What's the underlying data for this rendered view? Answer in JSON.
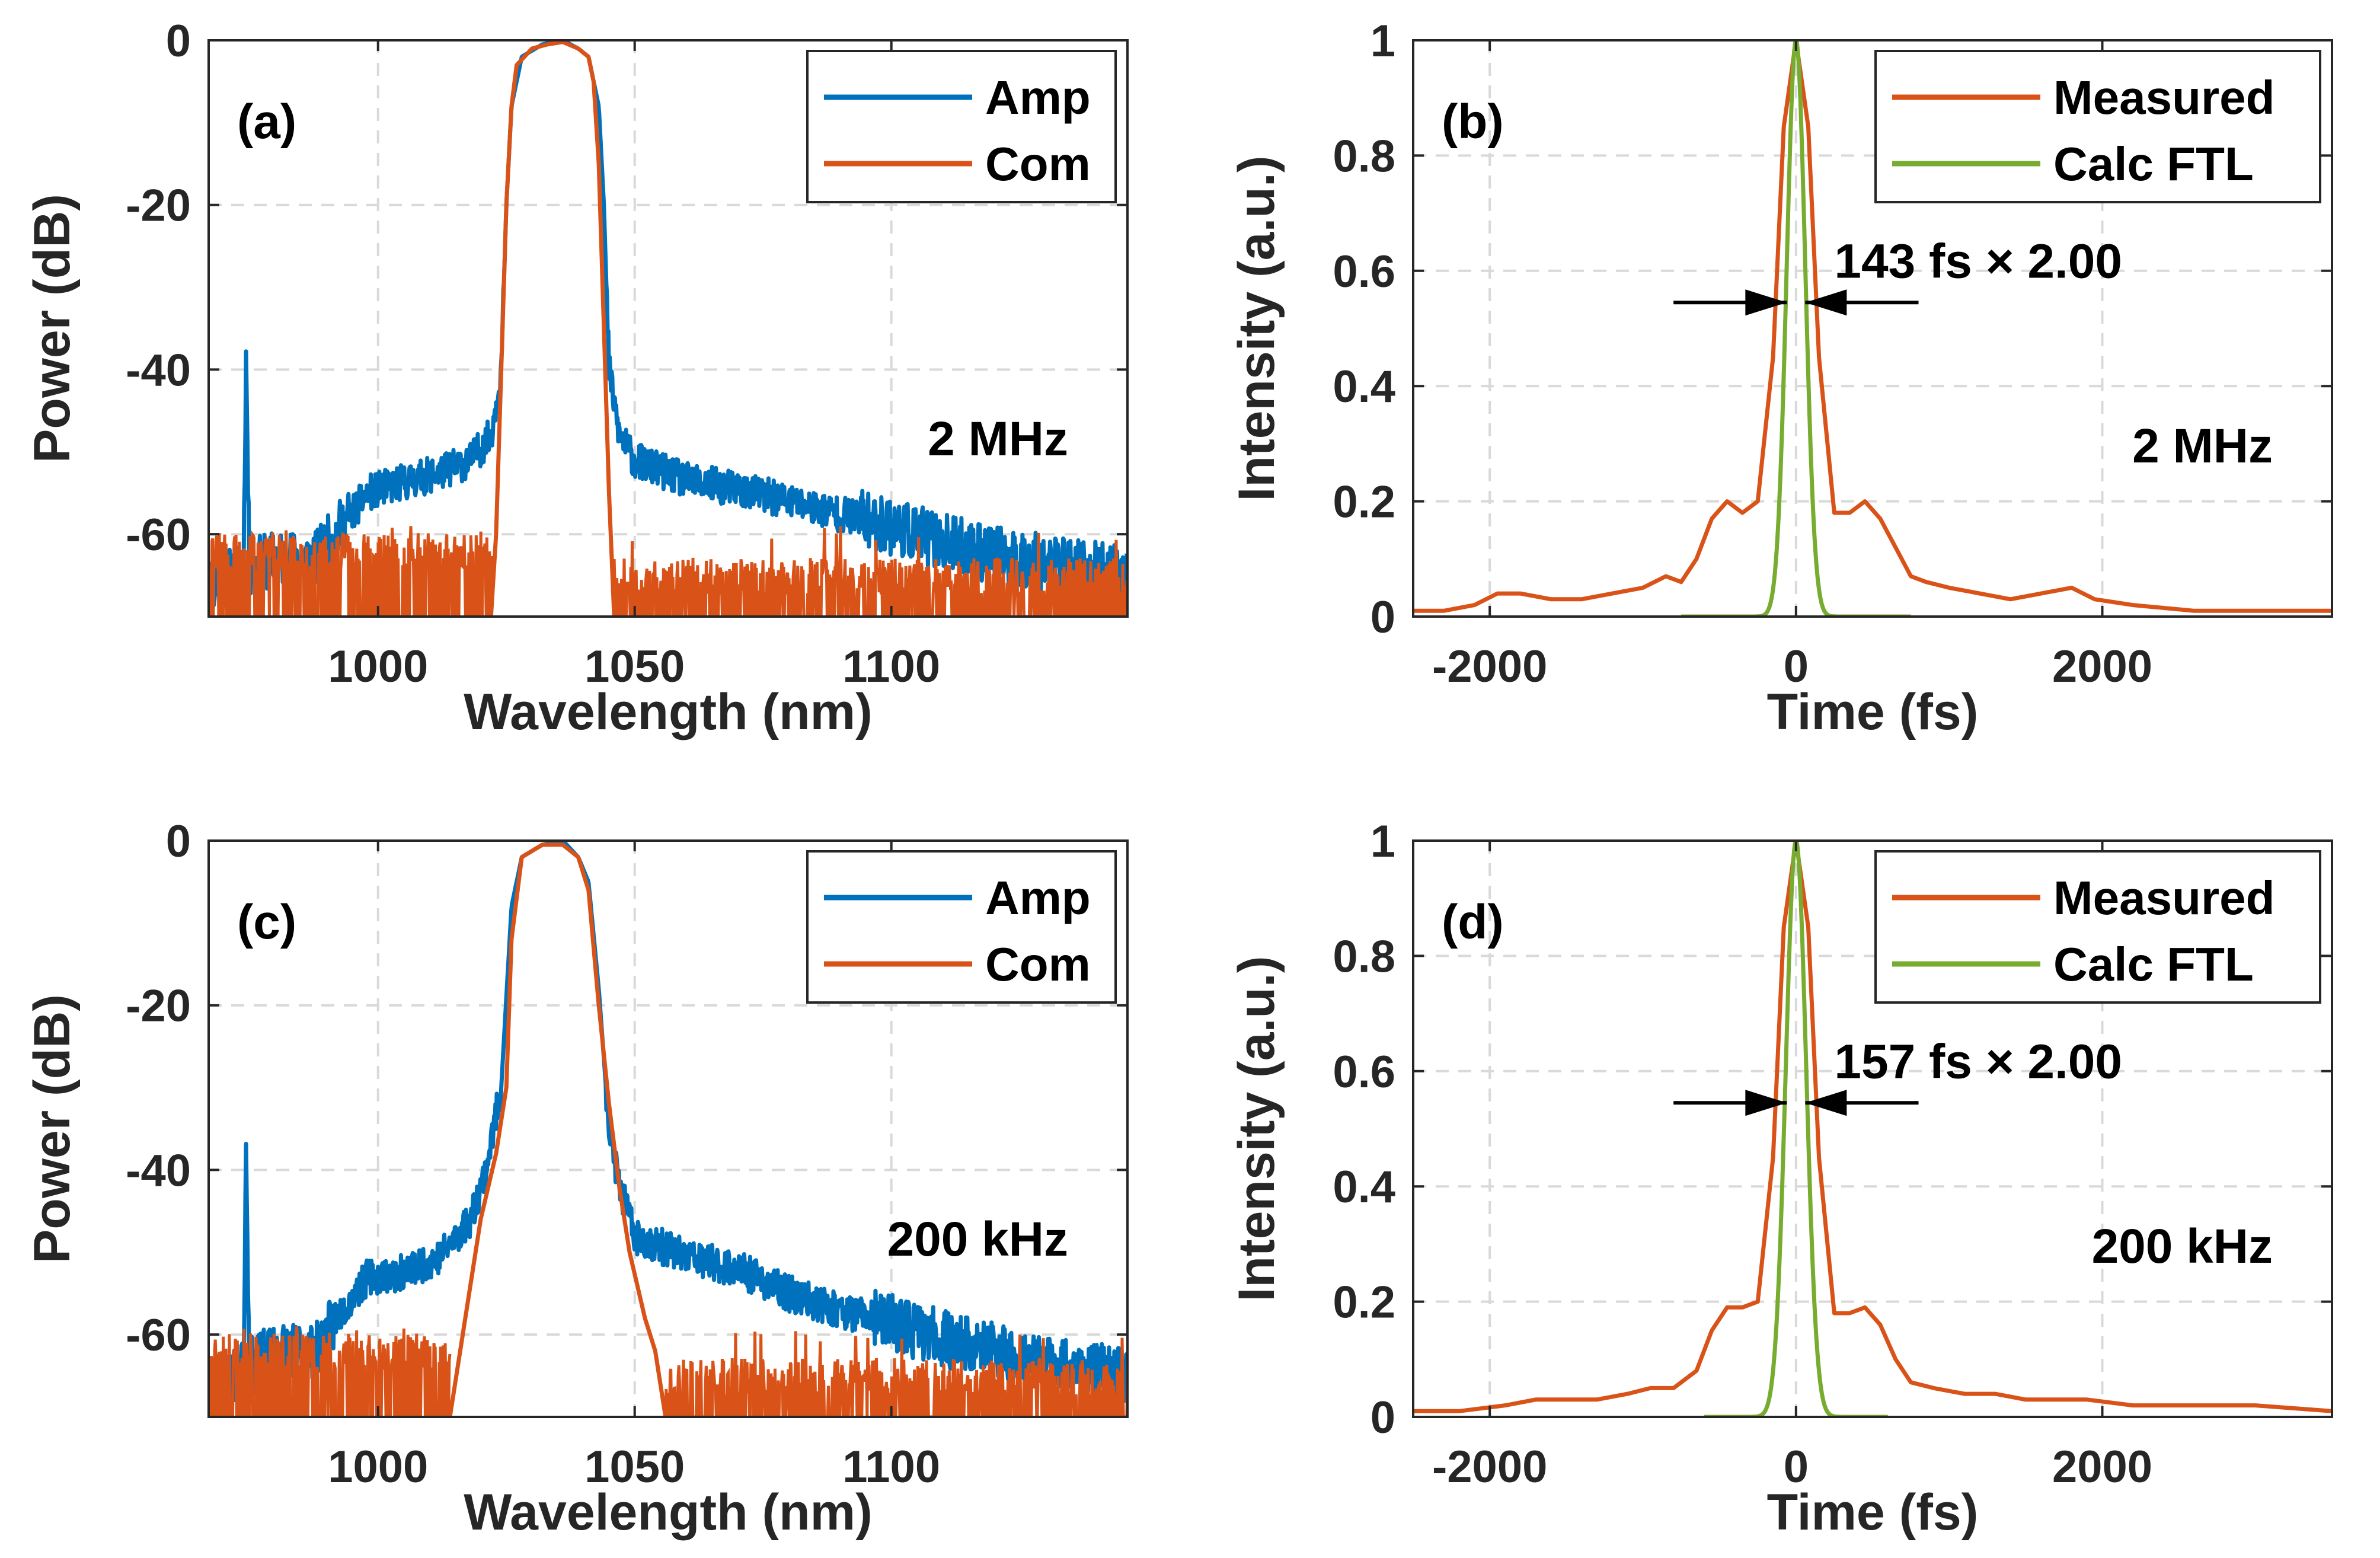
{
  "colors": {
    "blue": "#0072BD",
    "orange": "#D95319",
    "green": "#77AC30",
    "axis": "#262626",
    "grid": "#d9d9d9"
  },
  "chart_data": [
    {
      "id": "a",
      "type": "line",
      "panel_label": "(a)",
      "annotation": "2 MHz",
      "xlabel": "Wavelength (nm)",
      "ylabel": "Power (dB)",
      "xlim": [
        967,
        1146
      ],
      "ylim": [
        -70,
        0
      ],
      "xticks": [
        1000,
        1050,
        1100
      ],
      "xtick_labels": [
        "1000",
        "1050",
        "1100"
      ],
      "yticks": [
        0,
        -20,
        -40,
        -60
      ],
      "ytick_labels": [
        "0",
        "-20",
        "-40",
        "-60"
      ],
      "grid": true,
      "legend": {
        "position": "top-right",
        "entries": [
          "Amp",
          "Com"
        ]
      },
      "series": [
        {
          "name": "Amp",
          "color": "#0072BD",
          "noise": 2.2,
          "seed": 11,
          "points": [
            [
              967,
              -66
            ],
            [
              972,
              -65
            ],
            [
              973.8,
              -64
            ],
            [
              974.3,
              -38
            ],
            [
              974.9,
              -64
            ],
            [
              980,
              -63
            ],
            [
              988,
              -63
            ],
            [
              993,
              -59
            ],
            [
              998,
              -55
            ],
            [
              1003,
              -54
            ],
            [
              1012,
              -52.5
            ],
            [
              1018,
              -51
            ],
            [
              1022,
              -48
            ],
            [
              1024,
              -40
            ],
            [
              1025,
              -20
            ],
            [
              1026,
              -8
            ],
            [
              1028,
              -2
            ],
            [
              1032,
              -0.5
            ],
            [
              1036,
              0
            ],
            [
              1039,
              -1
            ],
            [
              1041,
              -2
            ],
            [
              1043,
              -8
            ],
            [
              1044,
              -20
            ],
            [
              1045,
              -40
            ],
            [
              1047,
              -48
            ],
            [
              1050,
              -51
            ],
            [
              1060,
              -53.5
            ],
            [
              1070,
              -54.5
            ],
            [
              1080,
              -56
            ],
            [
              1090,
              -57.5
            ],
            [
              1100,
              -59
            ],
            [
              1110,
              -61
            ],
            [
              1120,
              -62.5
            ],
            [
              1130,
              -63.5
            ],
            [
              1146,
              -65
            ]
          ]
        },
        {
          "name": "Com",
          "color": "#D95319",
          "noise": 0,
          "seed": 0,
          "points": [
            [
              1022,
              -70
            ],
            [
              1023,
              -60
            ],
            [
              1024,
              -40
            ],
            [
              1025,
              -20
            ],
            [
              1026,
              -8
            ],
            [
              1027,
              -3
            ],
            [
              1030,
              -1
            ],
            [
              1033,
              -0.5
            ],
            [
              1036,
              -0.2
            ],
            [
              1039,
              -1
            ],
            [
              1041,
              -2
            ],
            [
              1042,
              -5
            ],
            [
              1043,
              -15
            ],
            [
              1044,
              -35
            ],
            [
              1045,
              -55
            ],
            [
              1046,
              -70
            ]
          ]
        }
      ],
      "noise_floor": {
        "color": "#D95319",
        "base": -70,
        "range": [
          [
            967,
            1022.5
          ],
          [
            1046,
            1146
          ]
        ],
        "level_left": -63,
        "level_right": -66,
        "spike": -59,
        "seed": 7
      }
    },
    {
      "id": "b",
      "type": "line",
      "panel_label": "(b)",
      "annotation": "2 MHz",
      "width_label": "143 fs × 2.00",
      "xlabel": "Time (fs)",
      "ylabel": "Intensity (a.u.)",
      "xlim": [
        -2500,
        3500
      ],
      "ylim": [
        0,
        1
      ],
      "xticks": [
        -2000,
        0,
        2000
      ],
      "xtick_labels": [
        "-2000",
        "0",
        "2000"
      ],
      "yticks": [
        0,
        0.2,
        0.4,
        0.6,
        0.8,
        1
      ],
      "ytick_labels": [
        "0",
        "0.2",
        "0.4",
        "0.6",
        "0.8",
        "1"
      ],
      "grid": true,
      "legend": {
        "position": "top-right",
        "entries": [
          "Measured",
          "Calc FTL"
        ]
      },
      "series": [
        {
          "name": "Measured",
          "color": "#D95319",
          "points": [
            [
              -2500,
              0.01
            ],
            [
              -2300,
              0.01
            ],
            [
              -2100,
              0.02
            ],
            [
              -1950,
              0.04
            ],
            [
              -1800,
              0.04
            ],
            [
              -1600,
              0.03
            ],
            [
              -1400,
              0.03
            ],
            [
              -1200,
              0.04
            ],
            [
              -1000,
              0.05
            ],
            [
              -850,
              0.07
            ],
            [
              -750,
              0.06
            ],
            [
              -650,
              0.1
            ],
            [
              -550,
              0.17
            ],
            [
              -450,
              0.2
            ],
            [
              -350,
              0.18
            ],
            [
              -250,
              0.2
            ],
            [
              -150,
              0.45
            ],
            [
              -80,
              0.85
            ],
            [
              0,
              1
            ],
            [
              80,
              0.85
            ],
            [
              150,
              0.45
            ],
            [
              250,
              0.18
            ],
            [
              350,
              0.18
            ],
            [
              450,
              0.2
            ],
            [
              550,
              0.17
            ],
            [
              650,
              0.12
            ],
            [
              750,
              0.07
            ],
            [
              850,
              0.06
            ],
            [
              1000,
              0.05
            ],
            [
              1200,
              0.04
            ],
            [
              1400,
              0.03
            ],
            [
              1600,
              0.04
            ],
            [
              1800,
              0.05
            ],
            [
              1950,
              0.03
            ],
            [
              2200,
              0.02
            ],
            [
              2600,
              0.01
            ],
            [
              3000,
              0.01
            ],
            [
              3500,
              0.01
            ]
          ]
        },
        {
          "name": "Calc FTL",
          "color": "#77AC30",
          "fwhm": 143,
          "range": [
            -750,
            750
          ]
        }
      ],
      "arrows": {
        "y": 0.545,
        "left": [
          -800,
          -60
        ],
        "right": [
          60,
          800
        ]
      }
    },
    {
      "id": "c",
      "type": "line",
      "panel_label": "(c)",
      "annotation": "200 kHz",
      "xlabel": "Wavelength (nm)",
      "ylabel": "Power (dB)",
      "xlim": [
        967,
        1146
      ],
      "ylim": [
        -70,
        0
      ],
      "xticks": [
        1000,
        1050,
        1100
      ],
      "xtick_labels": [
        "1000",
        "1050",
        "1100"
      ],
      "yticks": [
        0,
        -20,
        -40,
        -60
      ],
      "ytick_labels": [
        "0",
        "-20",
        "-40",
        "-60"
      ],
      "grid": true,
      "legend": {
        "position": "top-right",
        "entries": [
          "Amp",
          "Com"
        ]
      },
      "series": [
        {
          "name": "Amp",
          "color": "#0072BD",
          "noise": 2.2,
          "seed": 23,
          "points": [
            [
              967,
              -66
            ],
            [
              972,
              -65
            ],
            [
              973.8,
              -64
            ],
            [
              974.3,
              -36
            ],
            [
              974.9,
              -64
            ],
            [
              980,
              -62
            ],
            [
              988,
              -62
            ],
            [
              993,
              -57
            ],
            [
              998,
              -53
            ],
            [
              1005,
              -52.5
            ],
            [
              1012,
              -50.5
            ],
            [
              1018,
              -46
            ],
            [
              1021,
              -40
            ],
            [
              1024,
              -30
            ],
            [
              1026,
              -8
            ],
            [
              1028,
              -2
            ],
            [
              1032,
              -0.5
            ],
            [
              1036,
              0
            ],
            [
              1039,
              -2
            ],
            [
              1041,
              -5
            ],
            [
              1043,
              -18
            ],
            [
              1045,
              -35
            ],
            [
              1047,
              -42
            ],
            [
              1050,
              -48
            ],
            [
              1060,
              -50.5
            ],
            [
              1070,
              -52
            ],
            [
              1080,
              -55
            ],
            [
              1090,
              -57
            ],
            [
              1100,
              -58.5
            ],
            [
              1110,
              -60.5
            ],
            [
              1120,
              -62
            ],
            [
              1130,
              -63.5
            ],
            [
              1146,
              -65
            ]
          ]
        },
        {
          "name": "Com",
          "color": "#D95319",
          "noise": 0,
          "seed": 0,
          "points": [
            [
              1014,
              -70
            ],
            [
              1016,
              -62
            ],
            [
              1018,
              -54
            ],
            [
              1020,
              -46
            ],
            [
              1023,
              -38
            ],
            [
              1025,
              -30
            ],
            [
              1026,
              -12
            ],
            [
              1028,
              -2
            ],
            [
              1032,
              -0.5
            ],
            [
              1036,
              -0.5
            ],
            [
              1039,
              -2
            ],
            [
              1041,
              -6
            ],
            [
              1043,
              -20
            ],
            [
              1045,
              -32
            ],
            [
              1047,
              -42
            ],
            [
              1049,
              -50
            ],
            [
              1052,
              -58
            ],
            [
              1054,
              -62
            ],
            [
              1056,
              -70
            ]
          ]
        }
      ],
      "noise_floor": {
        "color": "#D95319",
        "base": -70,
        "range": [
          [
            967,
            1014
          ],
          [
            1056,
            1146
          ]
        ],
        "level_left": -63,
        "level_right": -66,
        "spike": -59,
        "seed": 31
      }
    },
    {
      "id": "d",
      "type": "line",
      "panel_label": "(d)",
      "annotation": "200 kHz",
      "width_label": "157 fs × 2.00",
      "xlabel": "Time (fs)",
      "ylabel": "Intensity (a.u.)",
      "xlim": [
        -2500,
        3500
      ],
      "ylim": [
        0,
        1
      ],
      "xticks": [
        -2000,
        0,
        2000
      ],
      "xtick_labels": [
        "-2000",
        "0",
        "2000"
      ],
      "yticks": [
        0,
        0.2,
        0.4,
        0.6,
        0.8,
        1
      ],
      "ytick_labels": [
        "0",
        "0.2",
        "0.4",
        "0.6",
        "0.8",
        "1"
      ],
      "grid": true,
      "legend": {
        "position": "top-right",
        "entries": [
          "Measured",
          "Calc FTL"
        ]
      },
      "series": [
        {
          "name": "Measured",
          "color": "#D95319",
          "points": [
            [
              -2500,
              0.01
            ],
            [
              -2200,
              0.01
            ],
            [
              -1900,
              0.02
            ],
            [
              -1700,
              0.03
            ],
            [
              -1500,
              0.03
            ],
            [
              -1300,
              0.03
            ],
            [
              -1100,
              0.04
            ],
            [
              -950,
              0.05
            ],
            [
              -800,
              0.05
            ],
            [
              -650,
              0.08
            ],
            [
              -550,
              0.15
            ],
            [
              -450,
              0.19
            ],
            [
              -350,
              0.19
            ],
            [
              -250,
              0.2
            ],
            [
              -150,
              0.45
            ],
            [
              -80,
              0.85
            ],
            [
              0,
              1
            ],
            [
              80,
              0.85
            ],
            [
              150,
              0.45
            ],
            [
              250,
              0.18
            ],
            [
              350,
              0.18
            ],
            [
              450,
              0.19
            ],
            [
              550,
              0.16
            ],
            [
              650,
              0.1
            ],
            [
              750,
              0.06
            ],
            [
              900,
              0.05
            ],
            [
              1100,
              0.04
            ],
            [
              1300,
              0.04
            ],
            [
              1500,
              0.03
            ],
            [
              1700,
              0.03
            ],
            [
              1900,
              0.03
            ],
            [
              2200,
              0.02
            ],
            [
              2600,
              0.02
            ],
            [
              3000,
              0.02
            ],
            [
              3500,
              0.01
            ]
          ]
        },
        {
          "name": "Calc FTL",
          "color": "#77AC30",
          "fwhm": 157,
          "range": [
            -600,
            600
          ]
        }
      ],
      "arrows": {
        "y": 0.545,
        "left": [
          -800,
          -60
        ],
        "right": [
          60,
          800
        ]
      }
    }
  ]
}
